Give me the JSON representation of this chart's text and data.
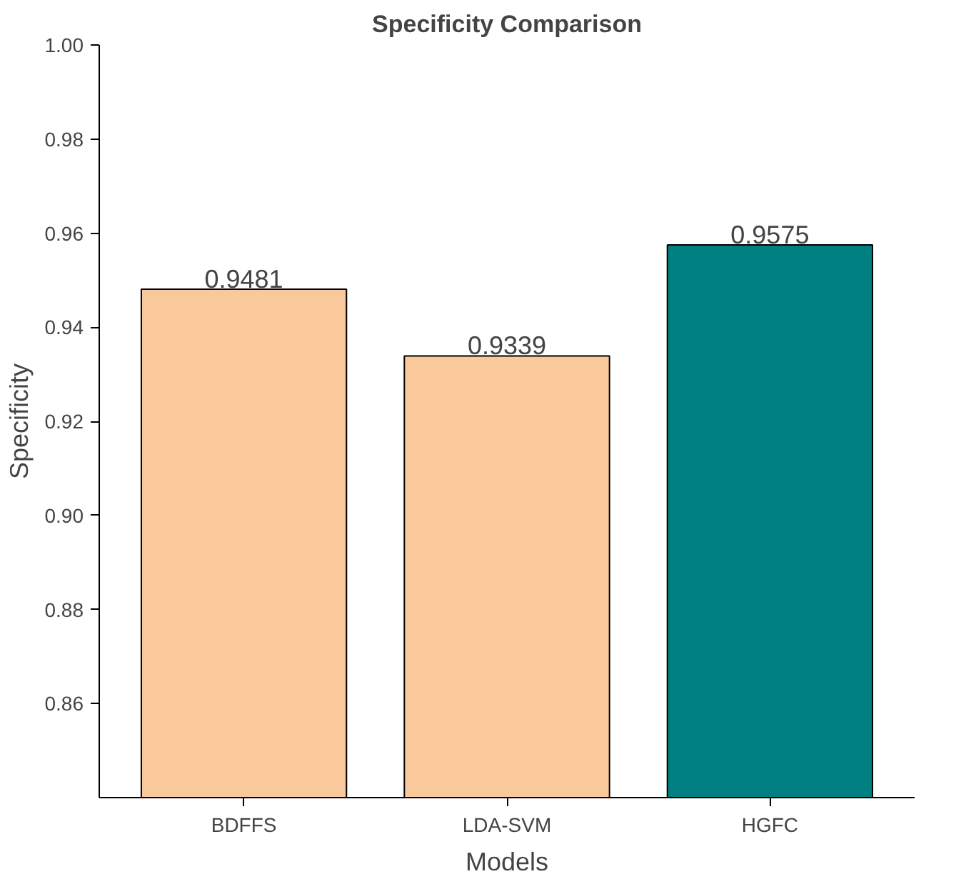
{
  "chart_data": {
    "type": "bar",
    "title": "Specificity Comparison",
    "xlabel": "Models",
    "ylabel": "Specificity",
    "categories": [
      "BDFFS",
      "LDA-SVM",
      "HGFC"
    ],
    "values": [
      0.9481,
      0.9339,
      0.9575
    ],
    "colors": [
      "#f9c89b",
      "#f9c89b",
      "#008080"
    ],
    "ylim": [
      0.84,
      1.0
    ],
    "yticks": [
      0.86,
      0.88,
      {
        "value": 0.9,
        "label": "0.90"
      },
      0.92,
      0.94,
      0.96,
      0.98,
      {
        "value": 1.0,
        "label": "1.00"
      }
    ],
    "data_labels": true,
    "grid": false
  }
}
